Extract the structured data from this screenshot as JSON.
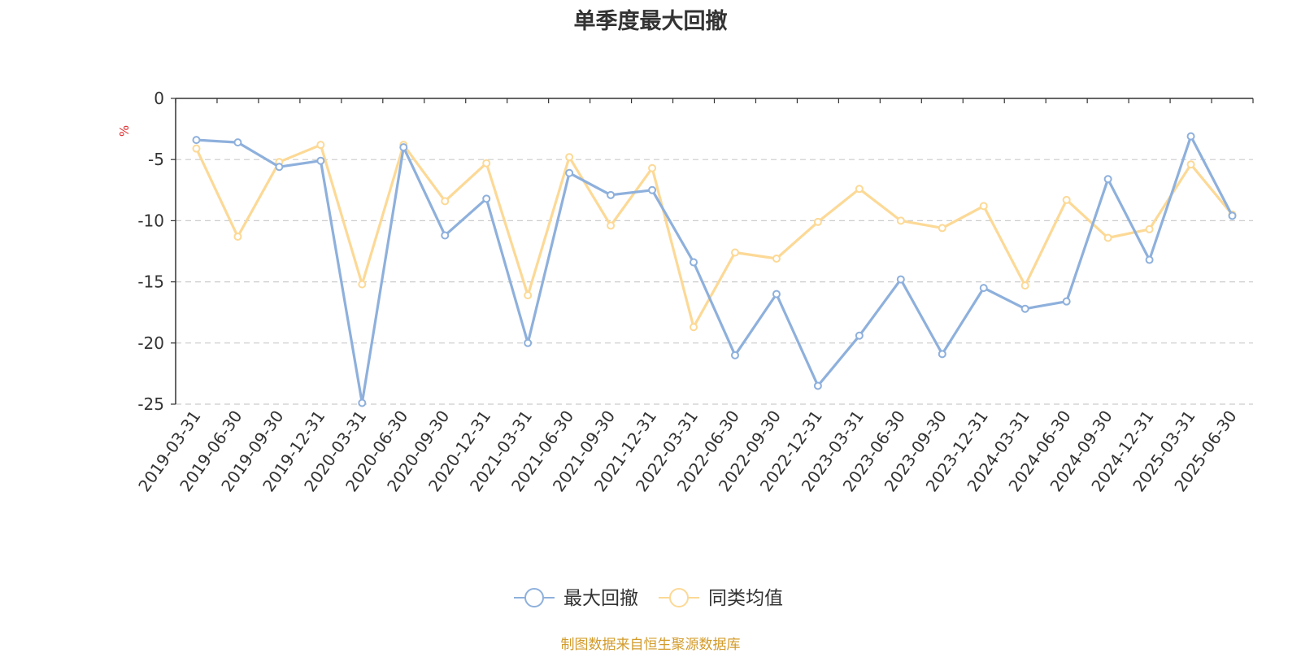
{
  "chart_data": {
    "type": "line",
    "title": "单季度最大回撤",
    "ylabel": "%",
    "ylim": [
      -25,
      0
    ],
    "yticks": [
      0,
      -5,
      -10,
      -15,
      -20,
      -25
    ],
    "grid": true,
    "legend_position": "bottom-center",
    "categories": [
      "2019-03-31",
      "2019-06-30",
      "2019-09-30",
      "2019-12-31",
      "2020-03-31",
      "2020-06-30",
      "2020-09-30",
      "2020-12-31",
      "2021-03-31",
      "2021-06-30",
      "2021-09-30",
      "2021-12-31",
      "2022-03-31",
      "2022-06-30",
      "2022-09-30",
      "2022-12-31",
      "2023-03-31",
      "2023-06-30",
      "2023-09-30",
      "2023-12-31",
      "2024-03-31",
      "2024-06-30",
      "2024-09-30",
      "2024-12-31",
      "2025-03-31",
      "2025-06-30"
    ],
    "series": [
      {
        "name": "最大回撤",
        "color": "#8eb0dc",
        "values": [
          -3.4,
          -3.6,
          -5.6,
          -5.1,
          -24.9,
          -4.0,
          -11.2,
          -8.2,
          -20.0,
          -6.1,
          -7.9,
          -7.5,
          -13.4,
          -21.0,
          -16.0,
          -23.5,
          -19.4,
          -14.8,
          -20.9,
          -15.5,
          -17.2,
          -16.6,
          -6.6,
          -13.2,
          -3.1,
          -9.6
        ]
      },
      {
        "name": "同类均值",
        "color": "#fcd996",
        "values": [
          -4.1,
          -11.3,
          -5.2,
          -3.8,
          -15.2,
          -3.8,
          -8.4,
          -5.3,
          -16.1,
          -4.8,
          -10.4,
          -5.7,
          -18.7,
          -12.6,
          -13.1,
          -10.1,
          -7.4,
          -10.0,
          -10.6,
          -8.8,
          -15.3,
          -8.3,
          -11.4,
          -10.7,
          -5.4,
          -9.5
        ]
      }
    ]
  },
  "source_note": "制图数据来自恒生聚源数据库"
}
